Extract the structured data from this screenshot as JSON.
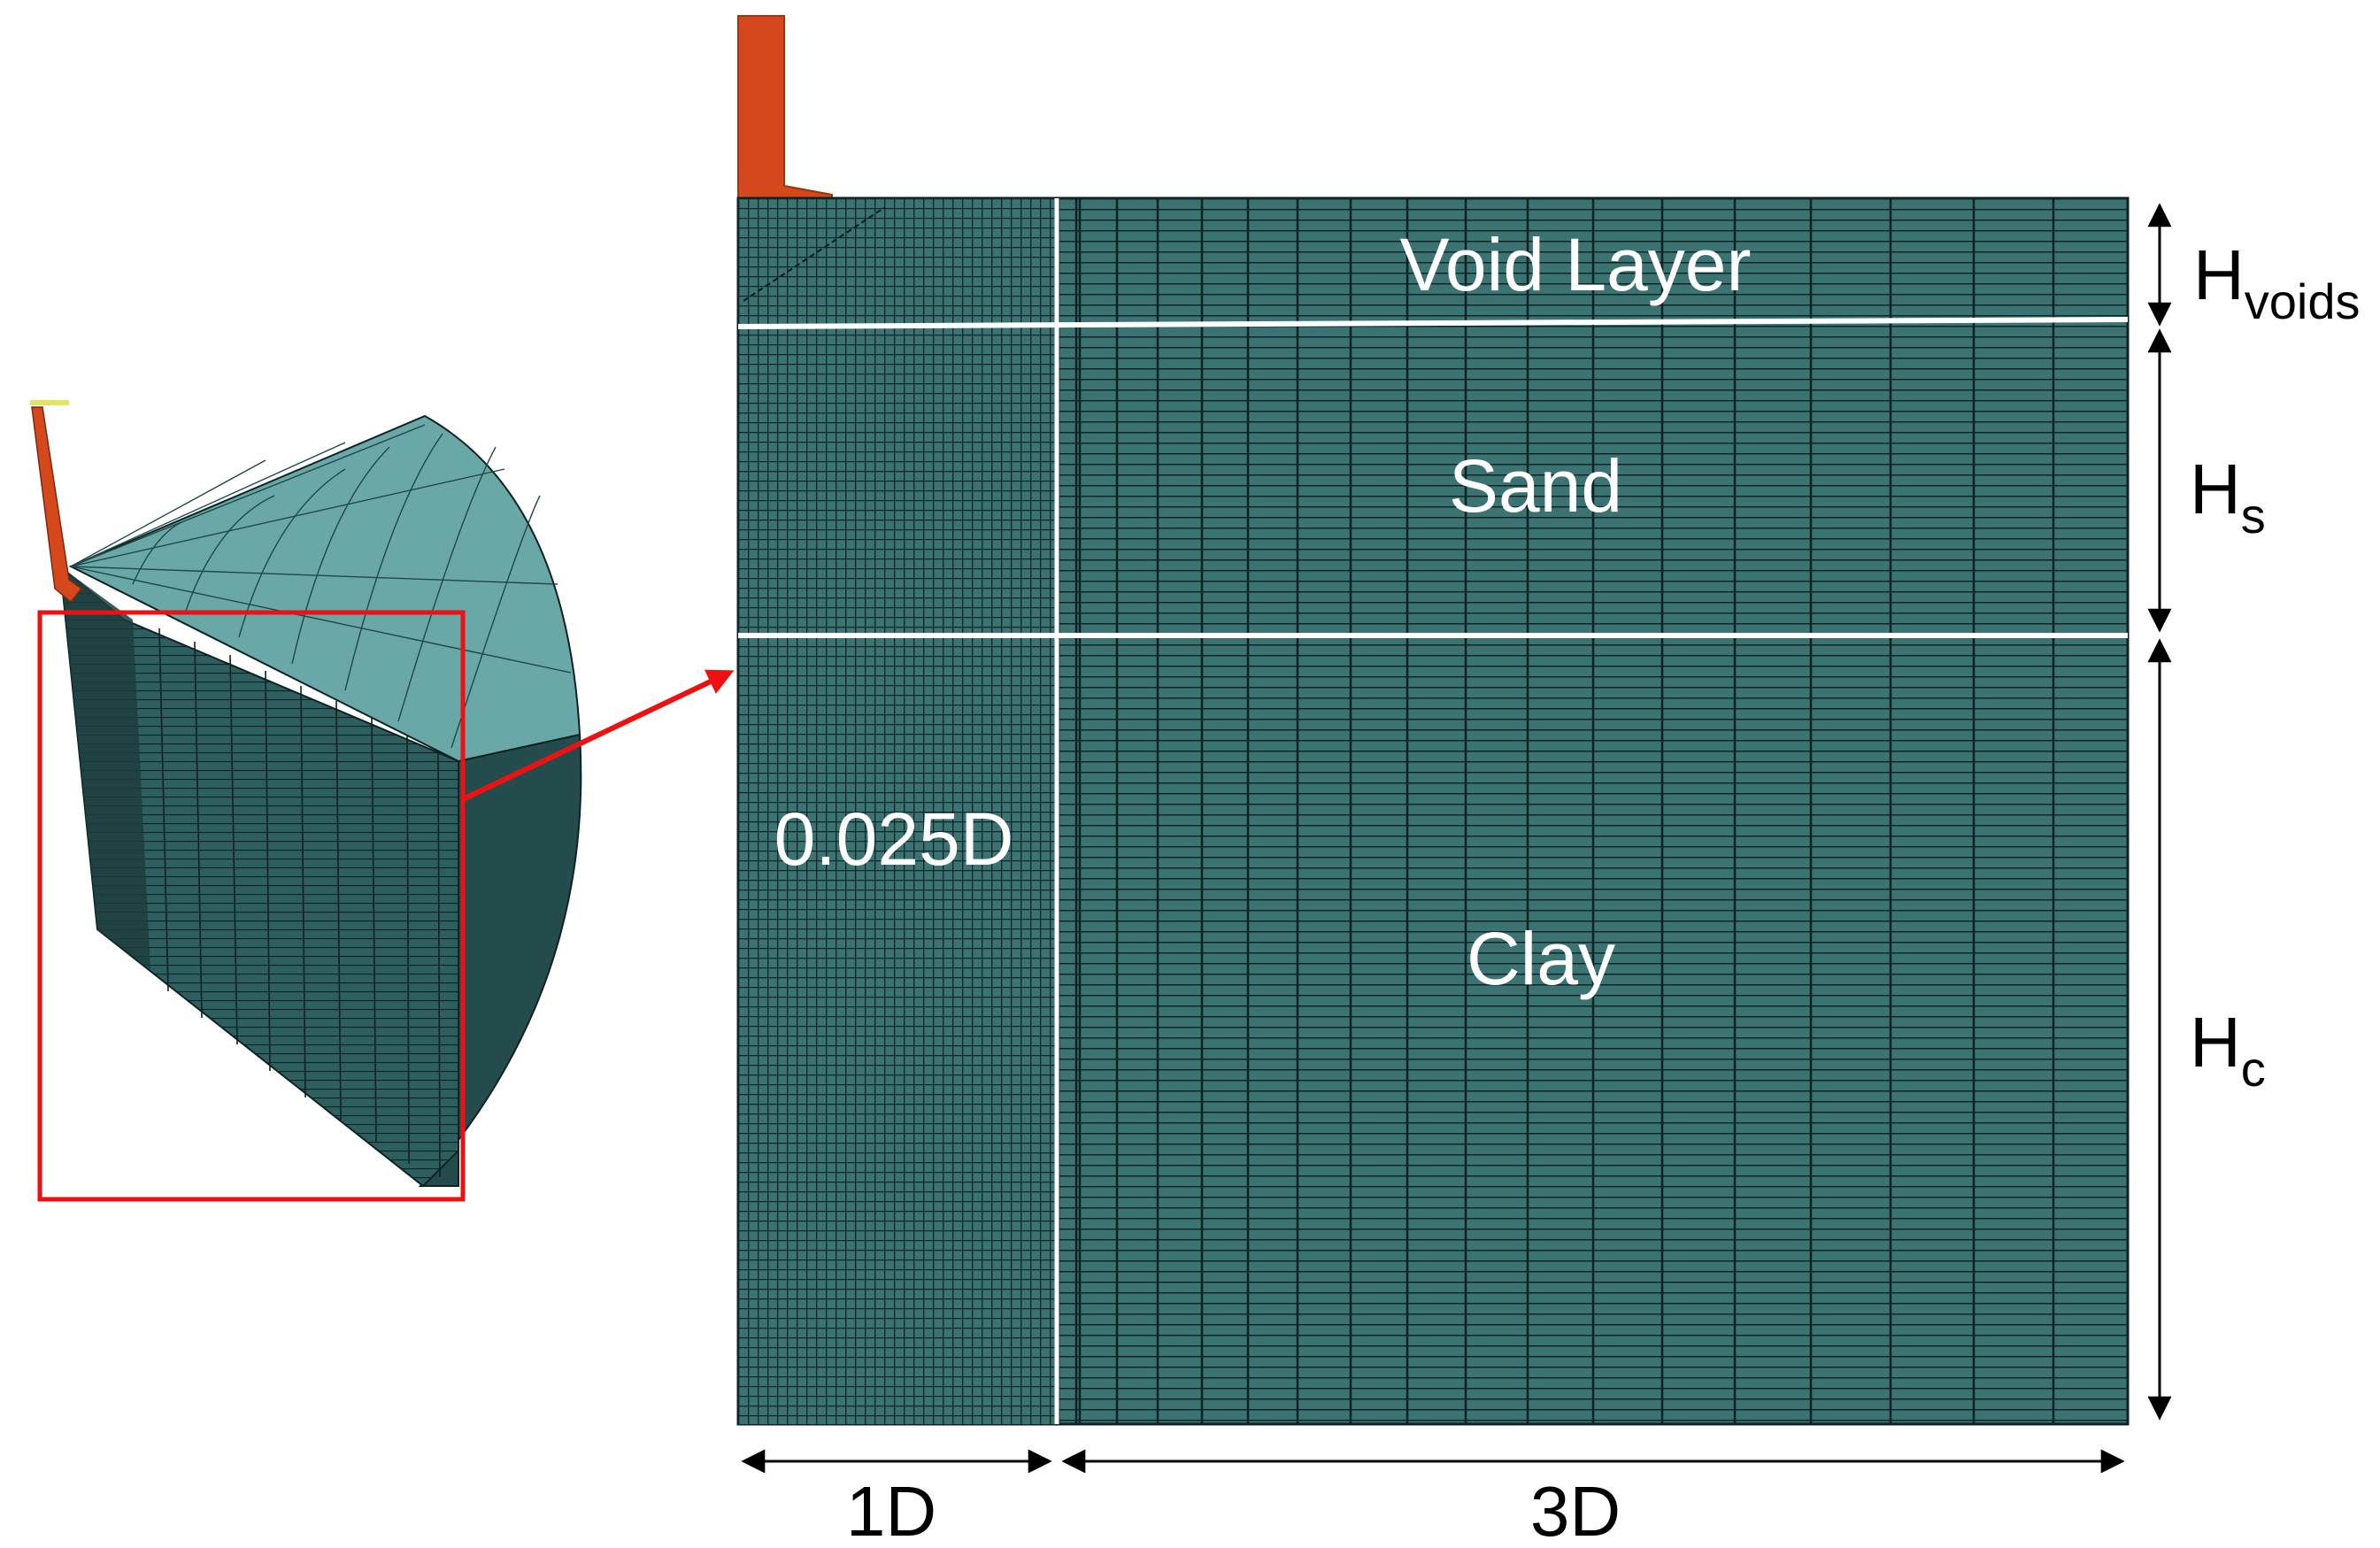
{
  "labels": {
    "void_layer": "Void Layer",
    "sand": "Sand",
    "clay": "Clay",
    "inner_spacing": "0.025D",
    "width_inner": "1D",
    "width_outer": "3D",
    "h_voids_main": "H",
    "h_voids_sub": "voids",
    "h_s_main": "H",
    "h_s_sub": "s",
    "h_c_main": "H",
    "h_c_sub": "c"
  },
  "colors": {
    "mesh_fill": "#3b7373",
    "mesh_line": "#102a2a",
    "mesh_face_light": "#6aa7a7",
    "pile": "#d4481c",
    "callout_red": "#ee1111",
    "layer_boundary": "#ffffff",
    "annotation": "#000000"
  }
}
